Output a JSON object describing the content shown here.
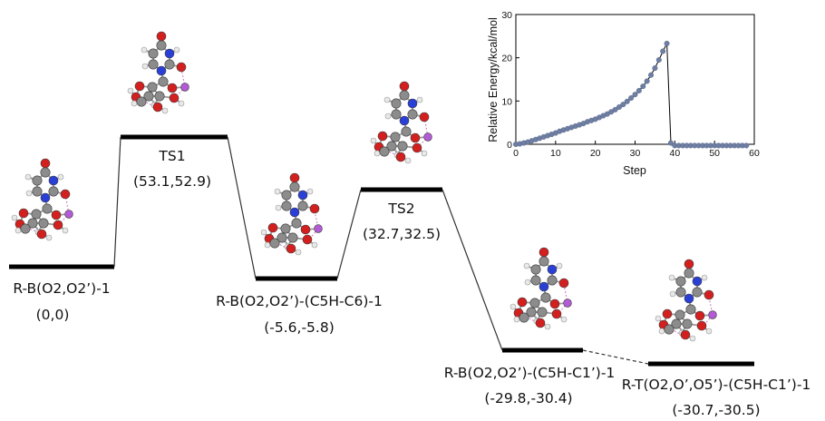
{
  "states": [
    {
      "id": "rb1",
      "name": "R-B(O2,O2’)-1",
      "energies": "(0,0)"
    },
    {
      "id": "ts1",
      "name": "TS1",
      "energies": "(53.1,52.9)"
    },
    {
      "id": "rbc6",
      "name": "R-B(O2,O2’)-(C5H-C6)-1",
      "energies": "(-5.6,-5.8)"
    },
    {
      "id": "ts2",
      "name": "TS2",
      "energies": "(32.7,32.5)"
    },
    {
      "id": "rbc1",
      "name": "R-B(O2,O2’)-(C5H-C1’)-1",
      "energies": "(-29.8,-30.4)"
    },
    {
      "id": "rt",
      "name": "R-T(O2,O’,O5’)-(C5H-C1’)-1",
      "energies": "(-30.7,-30.5)"
    }
  ],
  "colors": {
    "carbon": "#8c8c8c",
    "oxygen": "#d41f1f",
    "nitrogen": "#2a3fd6",
    "hydrogen": "#e8e8e8",
    "boron": "#b45ad6",
    "bond": "#9a9a9a",
    "h_bond": "#d08bd0",
    "plot_marker": "#6f7fa3"
  },
  "chart_data": {
    "type": "scatter",
    "xlabel": "Step",
    "ylabel": "Relative Energy/kcal/mol",
    "xlim": [
      0,
      60
    ],
    "ylim": [
      0,
      30
    ],
    "xticks": [
      0,
      10,
      20,
      30,
      40,
      50,
      60
    ],
    "yticks": [
      0,
      10,
      20,
      30
    ],
    "grid": false,
    "x": [
      0,
      1,
      2,
      3,
      4,
      5,
      6,
      7,
      8,
      9,
      10,
      11,
      12,
      13,
      14,
      15,
      16,
      17,
      18,
      19,
      20,
      21,
      22,
      23,
      24,
      25,
      26,
      27,
      28,
      29,
      30,
      31,
      32,
      33,
      34,
      35,
      36,
      37,
      38,
      39,
      40,
      41,
      42,
      43,
      44,
      45,
      46,
      47,
      48,
      49,
      50,
      51,
      52,
      53,
      54,
      55,
      56,
      57,
      58
    ],
    "y": [
      0,
      0.1,
      0.3,
      0.5,
      0.8,
      1.1,
      1.4,
      1.7,
      2.0,
      2.3,
      2.6,
      3.0,
      3.3,
      3.6,
      3.9,
      4.2,
      4.5,
      4.8,
      5.2,
      5.5,
      5.8,
      6.2,
      6.6,
      7.0,
      7.5,
      8.0,
      8.6,
      9.2,
      9.9,
      10.7,
      11.5,
      12.4,
      13.4,
      14.6,
      16.0,
      17.6,
      19.5,
      21.5,
      23.3,
      0.3,
      -0.3,
      -0.3,
      -0.3,
      -0.3,
      -0.3,
      -0.3,
      -0.3,
      -0.3,
      -0.3,
      -0.3,
      -0.3,
      -0.3,
      -0.3,
      -0.3,
      -0.3,
      -0.3,
      -0.3,
      -0.3,
      -0.3
    ]
  }
}
